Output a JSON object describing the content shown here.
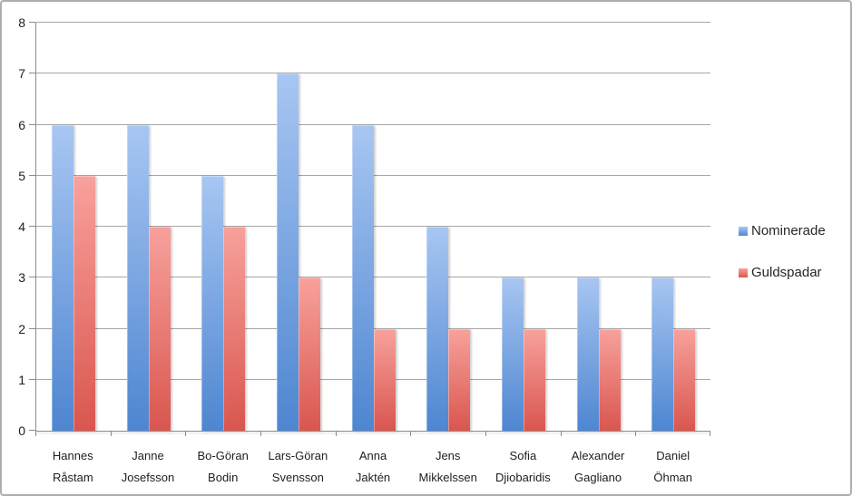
{
  "chart_data": {
    "type": "bar",
    "title": "",
    "xlabel": "",
    "ylabel": "",
    "categories": [
      "Hannes\nRåstam",
      "Janne\nJosefsson",
      "Bo-Göran\nBodin",
      "Lars-Göran\nSvensson",
      "Anna\nJaktén",
      "Jens\nMikkelssen",
      "Sofia\nDjiobaridis",
      "Alexander\nGagliano",
      "Daniel\nÖhman"
    ],
    "series": [
      {
        "name": "Nominerade",
        "values": [
          6,
          6,
          5,
          7,
          6,
          4,
          3,
          3,
          3
        ],
        "color_top": "#a8c6f2",
        "color_bottom": "#4e86d1"
      },
      {
        "name": "Guldspadar",
        "values": [
          5,
          4,
          4,
          3,
          2,
          2,
          2,
          2,
          2
        ],
        "color_top": "#f8a19c",
        "color_bottom": "#d9564f"
      }
    ],
    "ylim": [
      0,
      8
    ],
    "yticks": [
      0,
      1,
      2,
      3,
      4,
      5,
      6,
      7,
      8
    ],
    "grid": "horizontal",
    "legend_position": "right",
    "gridline_color": "#a7a7a7",
    "axis_color": "#8c8c8c"
  }
}
